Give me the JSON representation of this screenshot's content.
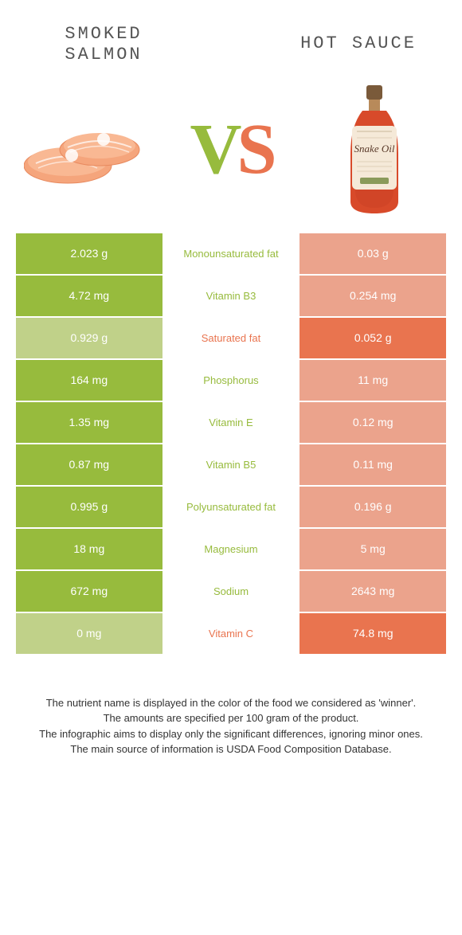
{
  "header": {
    "left_title": "SMOKED SALMON",
    "right_title": "HOT SAUCE",
    "vs_v": "V",
    "vs_s": "S"
  },
  "colors": {
    "left_win_bg": "#97bb3d",
    "left_lose_bg": "#c0d189",
    "right_win_bg": "#e9744f",
    "right_lose_bg": "#eba38c",
    "left_text": "#97bb3d",
    "right_text": "#e9744f",
    "bg": "#ffffff"
  },
  "table": {
    "rows": [
      {
        "left": "2.023 g",
        "label": "Monounsaturated fat",
        "right": "0.03 g",
        "winner": "left"
      },
      {
        "left": "4.72 mg",
        "label": "Vitamin B3",
        "right": "0.254 mg",
        "winner": "left"
      },
      {
        "left": "0.929 g",
        "label": "Saturated fat",
        "right": "0.052 g",
        "winner": "right"
      },
      {
        "left": "164 mg",
        "label": "Phosphorus",
        "right": "11 mg",
        "winner": "left"
      },
      {
        "left": "1.35 mg",
        "label": "Vitamin E",
        "right": "0.12 mg",
        "winner": "left"
      },
      {
        "left": "0.87 mg",
        "label": "Vitamin B5",
        "right": "0.11 mg",
        "winner": "left"
      },
      {
        "left": "0.995 g",
        "label": "Polyunsaturated fat",
        "right": "0.196 g",
        "winner": "left"
      },
      {
        "left": "18 mg",
        "label": "Magnesium",
        "right": "5 mg",
        "winner": "left"
      },
      {
        "left": "672 mg",
        "label": "Sodium",
        "right": "2643 mg",
        "winner": "left"
      },
      {
        "left": "0 mg",
        "label": "Vitamin C",
        "right": "74.8 mg",
        "winner": "right"
      }
    ]
  },
  "footer": {
    "line1": "The nutrient name is displayed in the color of the food we considered as 'winner'.",
    "line2": "The amounts are specified per 100 gram of the product.",
    "line3": "The infographic aims to display only the significant differences, ignoring minor ones.",
    "line4": "The main source of information is USDA Food Composition Database."
  },
  "illustrations": {
    "salmon_fill": "#f5a57c",
    "salmon_stroke": "#e88a5f",
    "salmon_highlight": "#ffffff",
    "bottle_body": "#d84a2a",
    "bottle_cap": "#7a5a3a",
    "bottle_label": "#f5e9d8",
    "bottle_label_text": "Snake Oil"
  }
}
